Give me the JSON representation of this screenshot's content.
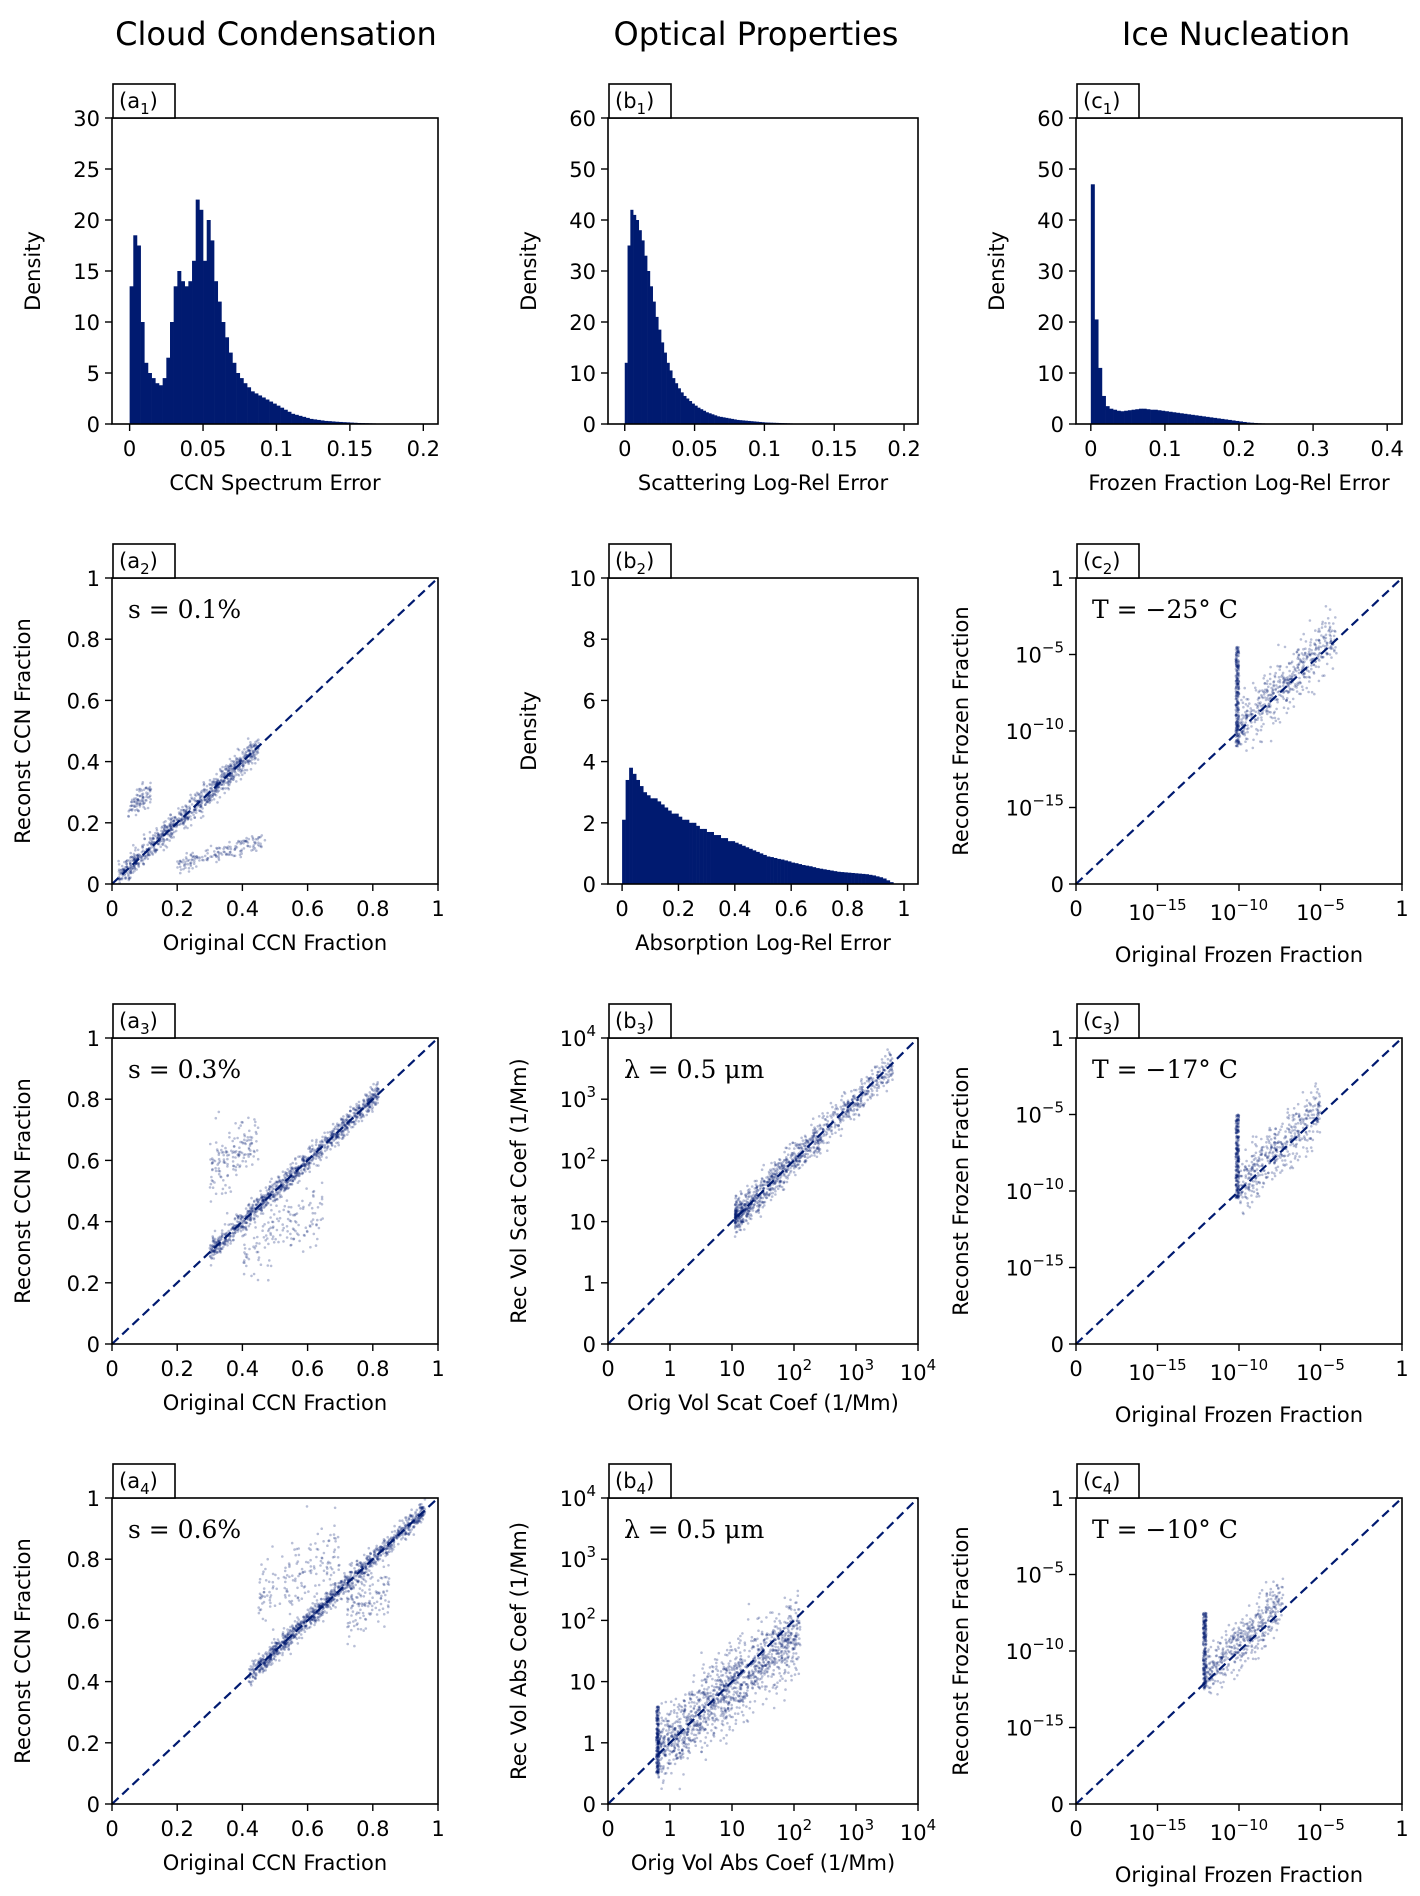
{
  "column_titles": [
    "Cloud Condensation",
    "Optical Properties",
    "Ice Nucleation"
  ],
  "colors": {
    "bar": "#001a70",
    "scatter": "#001a70",
    "diagonal": "#001a70",
    "axis": "#000000"
  },
  "chart_data": [
    {
      "id": "a1",
      "type": "bar",
      "label_main": "(a",
      "label_sub": "1",
      "label_close": ")",
      "xlabel": "CCN Spectrum Error",
      "ylabel": "Density",
      "xlim": [
        -0.012,
        0.21
      ],
      "ylim": [
        0,
        30
      ],
      "xticks": [
        0,
        0.05,
        0.1,
        0.15,
        0.2
      ],
      "xtick_labels": [
        "0",
        "0.05",
        "0.1",
        "0.15",
        "0.2"
      ],
      "yticks": [
        0,
        5,
        10,
        15,
        20,
        25,
        30
      ],
      "ytick_labels": [
        "0",
        "5",
        "10",
        "15",
        "20",
        "25",
        "30"
      ],
      "bin_start": 0,
      "bin_width": 0.0025,
      "values": [
        13.5,
        18.5,
        17.5,
        10,
        6,
        5,
        4.5,
        4,
        3.8,
        4.5,
        6.5,
        10,
        13.5,
        15,
        14,
        13.5,
        14,
        16,
        22,
        21,
        16,
        20,
        18,
        14,
        12,
        10,
        8.5,
        7,
        6,
        5,
        4.5,
        4,
        3.6,
        3.2,
        3,
        2.8,
        2.6,
        2.4,
        2.2,
        2,
        1.8,
        1.6,
        1.4,
        1.2,
        1,
        0.9,
        0.8,
        0.7,
        0.6,
        0.5,
        0.45,
        0.4,
        0.35,
        0.3,
        0.28,
        0.25,
        0.22,
        0.2,
        0.18,
        0.16,
        0.14,
        0.12,
        0.1,
        0.09,
        0.08,
        0.07,
        0.06,
        0.05,
        0.04,
        0.03
      ]
    },
    {
      "id": "b1",
      "type": "bar",
      "label_main": "(b",
      "label_sub": "1",
      "label_close": ")",
      "xlabel": "Scattering Log-Rel Error",
      "ylabel": "Density",
      "xlim": [
        -0.012,
        0.21
      ],
      "ylim": [
        0,
        60
      ],
      "xticks": [
        0,
        0.05,
        0.1,
        0.15,
        0.2
      ],
      "xtick_labels": [
        "0",
        "0.05",
        "0.1",
        "0.15",
        "0.2"
      ],
      "yticks": [
        0,
        10,
        20,
        30,
        40,
        50,
        60
      ],
      "ytick_labels": [
        "0",
        "10",
        "20",
        "30",
        "40",
        "50",
        "60"
      ],
      "bin_start": 0,
      "bin_width": 0.002,
      "values": [
        12,
        35,
        42,
        41,
        40,
        38,
        36,
        33,
        30,
        27,
        24,
        21,
        18.5,
        16,
        14,
        12,
        10.5,
        9,
        8,
        7,
        6.2,
        5.5,
        5,
        4.5,
        4,
        3.6,
        3.2,
        2.9,
        2.6,
        2.3,
        2.1,
        1.9,
        1.7,
        1.5,
        1.4,
        1.3,
        1.2,
        1.1,
        1,
        0.9,
        0.8,
        0.75,
        0.7,
        0.65,
        0.6,
        0.55,
        0.5,
        0.45,
        0.4,
        0.35,
        0.3,
        0.28,
        0.26,
        0.24,
        0.22,
        0.2,
        0.18,
        0.16,
        0.14,
        0.12,
        0.1,
        0.09,
        0.08,
        0.07,
        0.06,
        0.05,
        0.04,
        0.03,
        0.02,
        0.02
      ]
    },
    {
      "id": "c1",
      "type": "bar",
      "label_main": "(c",
      "label_sub": "1",
      "label_close": ")",
      "xlabel": "Frozen Fraction Log-Rel Error",
      "ylabel": "Density",
      "xlim": [
        -0.02,
        0.42
      ],
      "ylim": [
        0,
        60
      ],
      "xticks": [
        0,
        0.1,
        0.2,
        0.3,
        0.4
      ],
      "xtick_labels": [
        "0",
        "0.1",
        "0.2",
        "0.3",
        "0.4"
      ],
      "yticks": [
        0,
        10,
        20,
        30,
        40,
        50,
        60
      ],
      "ytick_labels": [
        "0",
        "10",
        "20",
        "30",
        "40",
        "50",
        "60"
      ],
      "bin_start": 0,
      "bin_width": 0.005,
      "values": [
        47,
        20.5,
        11,
        5.5,
        3.5,
        3,
        2.8,
        2.6,
        2.5,
        2.6,
        2.7,
        2.8,
        2.9,
        3,
        3,
        2.9,
        2.8,
        2.8,
        2.7,
        2.6,
        2.5,
        2.4,
        2.3,
        2.2,
        2.1,
        2,
        1.9,
        1.8,
        1.7,
        1.6,
        1.5,
        1.4,
        1.3,
        1.2,
        1.1,
        1,
        0.9,
        0.8,
        0.7,
        0.6,
        0.5,
        0.4,
        0.3,
        0.25,
        0.2,
        0.15,
        0.12,
        0.1,
        0.08,
        0.06,
        0.05,
        0.04,
        0.03,
        0.02,
        0.02,
        0.01
      ]
    },
    {
      "id": "a2",
      "type": "scatter",
      "label_main": "(a",
      "label_sub": "2",
      "label_close": ")",
      "annotation": "s = 0.1%",
      "xlabel": "Original CCN Fraction",
      "ylabel": "Reconst CCN Fraction",
      "xlim": [
        0,
        1
      ],
      "ylim": [
        0,
        1
      ],
      "ticks": [
        0,
        0.2,
        0.4,
        0.6,
        0.8,
        1
      ],
      "tick_labels": [
        "0",
        "0.2",
        "0.4",
        "0.6",
        "0.8",
        "1"
      ],
      "point_groups": [
        {
          "x_range": [
            0.02,
            0.45
          ],
          "slope": 1.0,
          "offset": 0,
          "spread": 0.02,
          "n": 900
        },
        {
          "x_range": [
            0.05,
            0.12
          ],
          "slope": 1.0,
          "offset": 0.19,
          "spread": 0.02,
          "n": 90
        },
        {
          "x_range": [
            0.2,
            0.47
          ],
          "slope": 0.3,
          "offset": 0.0,
          "spread": 0.015,
          "n": 160
        }
      ]
    },
    {
      "id": "b2",
      "type": "bar",
      "label_main": "(b",
      "label_sub": "2",
      "label_close": ")",
      "xlabel": "Absorption Log-Rel Error",
      "ylabel": "Density",
      "xlim": [
        -0.05,
        1.05
      ],
      "ylim": [
        0,
        10
      ],
      "xticks": [
        0,
        0.2,
        0.4,
        0.6,
        0.8,
        1
      ],
      "xtick_labels": [
        "0",
        "0.2",
        "0.4",
        "0.6",
        "0.8",
        "1"
      ],
      "yticks": [
        0,
        2,
        4,
        6,
        8,
        10
      ],
      "ytick_labels": [
        "0",
        "2",
        "4",
        "6",
        "8",
        "10"
      ],
      "bin_start": 0,
      "bin_width": 0.0125,
      "values": [
        2.1,
        3.4,
        3.8,
        3.6,
        3.4,
        3.2,
        3,
        2.9,
        2.8,
        2.8,
        2.7,
        2.6,
        2.5,
        2.4,
        2.3,
        2.3,
        2.2,
        2.1,
        2.1,
        2,
        2,
        1.9,
        1.8,
        1.8,
        1.7,
        1.7,
        1.6,
        1.6,
        1.5,
        1.5,
        1.4,
        1.4,
        1.35,
        1.3,
        1.25,
        1.2,
        1.15,
        1.1,
        1.05,
        1,
        0.95,
        0.9,
        0.88,
        0.85,
        0.82,
        0.8,
        0.77,
        0.74,
        0.7,
        0.68,
        0.65,
        0.62,
        0.6,
        0.58,
        0.55,
        0.52,
        0.5,
        0.48,
        0.46,
        0.44,
        0.42,
        0.4,
        0.39,
        0.38,
        0.37,
        0.36,
        0.35,
        0.34,
        0.33,
        0.32,
        0.3,
        0.28,
        0.25,
        0.22,
        0.18,
        0.12,
        0.06
      ]
    },
    {
      "id": "c2",
      "type": "scatter",
      "label_main": "(c",
      "label_sub": "2",
      "label_close": ")",
      "annotation": "T = −25° C",
      "xlabel": "Original Frozen Fraction",
      "ylabel": "Reconst Frozen Fraction",
      "scale": "log",
      "exp_range": [
        -20,
        0
      ],
      "tick_exps": [
        -20,
        -15,
        -10,
        -5,
        0
      ],
      "tick_labels": [
        "0",
        "10",
        "10",
        "10",
        "1"
      ],
      "tick_sups": [
        "",
        "−15",
        "−10",
        "−5",
        ""
      ],
      "point_groups": [
        {
          "x_range": [
            -10.2,
            -10
          ],
          "y_range": [
            -11,
            -4.5
          ],
          "n": 260,
          "mode": "band"
        },
        {
          "x_range": [
            -10,
            -4
          ],
          "slope": 1.0,
          "offset": 0.2,
          "spread": 0.9,
          "n": 500
        }
      ]
    },
    {
      "id": "a3",
      "type": "scatter",
      "label_main": "(a",
      "label_sub": "3",
      "label_close": ")",
      "annotation": "s = 0.3%",
      "xlabel": "Original CCN Fraction",
      "ylabel": "Reconst CCN Fraction",
      "xlim": [
        0,
        1
      ],
      "ylim": [
        0,
        1
      ],
      "ticks": [
        0,
        0.2,
        0.4,
        0.6,
        0.8,
        1
      ],
      "tick_labels": [
        "0",
        "0.2",
        "0.4",
        "0.6",
        "0.8",
        "1"
      ],
      "point_groups": [
        {
          "x_range": [
            0.3,
            0.82
          ],
          "slope": 1.0,
          "offset": 0,
          "spread": 0.018,
          "n": 1100
        },
        {
          "x_range": [
            0.3,
            0.45
          ],
          "slope": 0.7,
          "offset": 0.35,
          "spread": 0.05,
          "n": 150
        },
        {
          "x_range": [
            0.4,
            0.65
          ],
          "slope": 0.6,
          "offset": 0.05,
          "spread": 0.05,
          "n": 150
        }
      ]
    },
    {
      "id": "b3",
      "type": "scatter",
      "label_main": "(b",
      "label_sub": "3",
      "label_close": ")",
      "annotation": "λ = 0.5 μm",
      "xlabel": "Orig Vol Scat Coef (1/Mm)",
      "ylabel": "Rec Vol Scat Coef (1/Mm)",
      "scale": "symlog",
      "exp_range": [
        -1,
        4
      ],
      "tick_exps": [
        -1,
        0,
        1,
        2,
        3,
        4
      ],
      "tick_labels": [
        "0",
        "1",
        "10",
        "10",
        "10",
        "10"
      ],
      "tick_sups": [
        "",
        "",
        "",
        "2",
        "3",
        "4"
      ],
      "point_groups": [
        {
          "x_range": [
            1.05,
            3.6
          ],
          "slope": 1.0,
          "offset": 0,
          "spread": 0.13,
          "n": 1100,
          "bias_low": true
        }
      ]
    },
    {
      "id": "c3",
      "type": "scatter",
      "label_main": "(c",
      "label_sub": "3",
      "label_close": ")",
      "annotation": "T = −17° C",
      "xlabel": "Original Frozen Fraction",
      "ylabel": "Reconst Frozen Fraction",
      "scale": "log",
      "exp_range": [
        -20,
        0
      ],
      "tick_exps": [
        -20,
        -15,
        -10,
        -5,
        0
      ],
      "tick_labels": [
        "0",
        "10",
        "10",
        "10",
        "1"
      ],
      "tick_sups": [
        "",
        "−15",
        "−10",
        "−5",
        ""
      ],
      "point_groups": [
        {
          "x_range": [
            -10.2,
            -10
          ],
          "y_range": [
            -10.5,
            -5
          ],
          "n": 260,
          "mode": "band"
        },
        {
          "x_range": [
            -10,
            -5
          ],
          "slope": 1.0,
          "offset": 0.3,
          "spread": 0.9,
          "n": 450
        }
      ]
    },
    {
      "id": "a4",
      "type": "scatter",
      "label_main": "(a",
      "label_sub": "4",
      "label_close": ")",
      "annotation": "s = 0.6%",
      "xlabel": "Original CCN Fraction",
      "ylabel": "Reconst CCN Fraction",
      "xlim": [
        0,
        1
      ],
      "ylim": [
        0,
        1
      ],
      "ticks": [
        0,
        0.2,
        0.4,
        0.6,
        0.8,
        1
      ],
      "tick_labels": [
        "0",
        "0.2",
        "0.4",
        "0.6",
        "0.8",
        "1"
      ],
      "point_groups": [
        {
          "x_range": [
            0.42,
            0.96
          ],
          "slope": 1.0,
          "offset": 0,
          "spread": 0.017,
          "n": 1200
        },
        {
          "x_range": [
            0.45,
            0.7
          ],
          "slope": 0.6,
          "offset": 0.4,
          "spread": 0.06,
          "n": 170
        },
        {
          "x_range": [
            0.72,
            0.85
          ],
          "slope": 0.5,
          "offset": 0.27,
          "spread": 0.05,
          "n": 130
        }
      ]
    },
    {
      "id": "b4",
      "type": "scatter",
      "label_main": "(b",
      "label_sub": "4",
      "label_close": ")",
      "annotation": "λ = 0.5 μm",
      "xlabel": "Orig Vol Abs Coef (1/Mm)",
      "ylabel": "Rec Vol Abs Coef (1/Mm)",
      "scale": "symlog",
      "exp_range": [
        -1,
        4
      ],
      "tick_exps": [
        -1,
        0,
        1,
        2,
        3,
        4
      ],
      "tick_labels": [
        "0",
        "1",
        "10",
        "10",
        "10",
        "10"
      ],
      "tick_sups": [
        "",
        "",
        "",
        "2",
        "3",
        "4"
      ],
      "point_groups": [
        {
          "x_range": [
            -0.2,
            2.1
          ],
          "slope": 0.85,
          "offset": 0.05,
          "spread": 0.3,
          "n": 1400
        },
        {
          "x_range": [
            -0.22,
            -0.18
          ],
          "y_range": [
            -0.5,
            0.6
          ],
          "n": 200,
          "mode": "band"
        }
      ]
    },
    {
      "id": "c4",
      "type": "scatter",
      "label_main": "(c",
      "label_sub": "4",
      "label_close": ")",
      "annotation": "T = −10° C",
      "xlabel": "Original Frozen Fraction",
      "ylabel": "Reconst Frozen Fraction",
      "scale": "log",
      "exp_range": [
        -20,
        0
      ],
      "tick_exps": [
        -20,
        -15,
        -10,
        -5,
        0
      ],
      "tick_labels": [
        "0",
        "10",
        "10",
        "10",
        "1"
      ],
      "tick_sups": [
        "",
        "−15",
        "−10",
        "−5",
        ""
      ],
      "point_groups": [
        {
          "x_range": [
            -12.2,
            -12
          ],
          "y_range": [
            -12.5,
            -7.5
          ],
          "n": 240,
          "mode": "band"
        },
        {
          "x_range": [
            -12,
            -7.3
          ],
          "slope": 1.0,
          "offset": 0.5,
          "spread": 0.8,
          "n": 450
        }
      ]
    }
  ]
}
